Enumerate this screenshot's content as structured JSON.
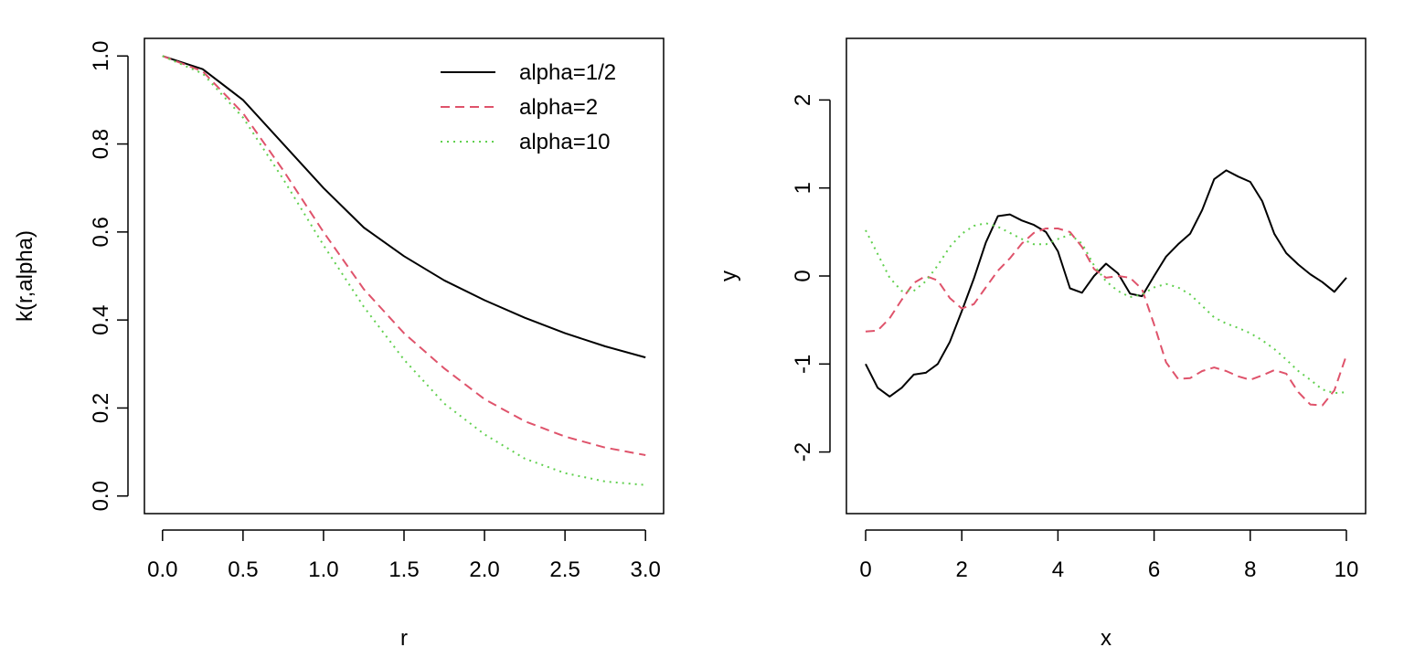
{
  "chart_data": [
    {
      "type": "line",
      "title": "",
      "xlabel": "r",
      "ylabel": "k(r,alpha)",
      "xlim": [
        -0.1125,
        3.1125
      ],
      "ylim": [
        -0.04,
        1.04
      ],
      "xticks": [
        0,
        0.5,
        1,
        1.5,
        2,
        2.5,
        3
      ],
      "xtick_labels": [
        "0.0",
        "0.5",
        "1.0",
        "1.5",
        "2.0",
        "2.5",
        "3.0"
      ],
      "yticks": [
        0,
        0.2,
        0.4,
        0.6,
        0.8,
        1.0
      ],
      "ytick_labels": [
        "0.0",
        "0.2",
        "0.4",
        "0.6",
        "0.8",
        "1.0"
      ],
      "grid": false,
      "legend_position": "top-right",
      "x": [
        0,
        0.25,
        0.5,
        0.75,
        1.0,
        1.25,
        1.5,
        1.75,
        2.0,
        2.25,
        2.5,
        2.75,
        3.0
      ],
      "series": [
        {
          "name": "alpha=1/2",
          "color": "#000000",
          "dash": "solid",
          "values": [
            1.0,
            0.97,
            0.9,
            0.8,
            0.7,
            0.61,
            0.545,
            0.49,
            0.445,
            0.405,
            0.37,
            0.34,
            0.315
          ]
        },
        {
          "name": "alpha=2",
          "color": "#DF536B",
          "dash": "dashed",
          "values": [
            1.0,
            0.965,
            0.87,
            0.74,
            0.6,
            0.47,
            0.37,
            0.29,
            0.22,
            0.17,
            0.135,
            0.11,
            0.093
          ]
        },
        {
          "name": "alpha=10",
          "color": "#61D04F",
          "dash": "dotted",
          "values": [
            1.0,
            0.96,
            0.86,
            0.72,
            0.57,
            0.43,
            0.31,
            0.21,
            0.14,
            0.085,
            0.052,
            0.033,
            0.025
          ]
        }
      ]
    },
    {
      "type": "line",
      "title": "",
      "xlabel": "x",
      "ylabel": "y",
      "xlim": [
        -0.4,
        10.4
      ],
      "ylim": [
        -2.7,
        2.7
      ],
      "xticks": [
        0,
        2,
        4,
        6,
        8,
        10
      ],
      "xtick_labels": [
        "0",
        "2",
        "4",
        "6",
        "8",
        "10"
      ],
      "yticks": [
        -2,
        -1,
        0,
        1,
        2
      ],
      "ytick_labels": [
        "-2",
        "-1",
        "0",
        "1",
        "2"
      ],
      "grid": false,
      "x": [
        0,
        0.25,
        0.5,
        0.75,
        1.0,
        1.25,
        1.5,
        1.75,
        2.0,
        2.25,
        2.5,
        2.75,
        3.0,
        3.25,
        3.5,
        3.75,
        4.0,
        4.25,
        4.5,
        4.75,
        5.0,
        5.25,
        5.5,
        5.75,
        6.0,
        6.25,
        6.5,
        6.75,
        7.0,
        7.25,
        7.5,
        7.75,
        8.0,
        8.25,
        8.5,
        8.75,
        9.0,
        9.25,
        9.5,
        9.75,
        10.0
      ],
      "series": [
        {
          "color": "#000000",
          "dash": "solid",
          "values": [
            -1.0,
            -1.27,
            -1.37,
            -1.27,
            -1.12,
            -1.1,
            -1.0,
            -0.75,
            -0.4,
            -0.03,
            0.38,
            0.68,
            0.7,
            0.63,
            0.58,
            0.5,
            0.28,
            -0.14,
            -0.19,
            0.0,
            0.14,
            0.03,
            -0.2,
            -0.23,
            0.0,
            0.22,
            0.36,
            0.48,
            0.75,
            1.1,
            1.2,
            1.13,
            1.07,
            0.85,
            0.48,
            0.26,
            0.13,
            0.02,
            -0.07,
            -0.18,
            -0.02
          ]
        },
        {
          "color": "#DF536B",
          "dash": "dashed",
          "values": [
            -0.63,
            -0.62,
            -0.48,
            -0.27,
            -0.08,
            0.0,
            -0.05,
            -0.25,
            -0.37,
            -0.32,
            -0.13,
            0.06,
            0.2,
            0.37,
            0.49,
            0.54,
            0.54,
            0.5,
            0.33,
            0.08,
            -0.02,
            0.0,
            -0.02,
            -0.15,
            -0.55,
            -0.98,
            -1.17,
            -1.16,
            -1.08,
            -1.04,
            -1.08,
            -1.14,
            -1.18,
            -1.13,
            -1.07,
            -1.11,
            -1.32,
            -1.46,
            -1.47,
            -1.3,
            -0.9
          ]
        },
        {
          "color": "#61D04F",
          "dash": "dotted",
          "values": [
            0.52,
            0.25,
            -0.02,
            -0.17,
            -0.17,
            -0.06,
            0.12,
            0.33,
            0.48,
            0.57,
            0.6,
            0.56,
            0.49,
            0.42,
            0.36,
            0.36,
            0.42,
            0.47,
            0.37,
            0.12,
            -0.06,
            -0.17,
            -0.24,
            -0.21,
            -0.13,
            -0.09,
            -0.13,
            -0.21,
            -0.34,
            -0.47,
            -0.54,
            -0.59,
            -0.65,
            -0.73,
            -0.83,
            -0.95,
            -1.08,
            -1.18,
            -1.29,
            -1.33,
            -1.32
          ]
        }
      ]
    }
  ]
}
